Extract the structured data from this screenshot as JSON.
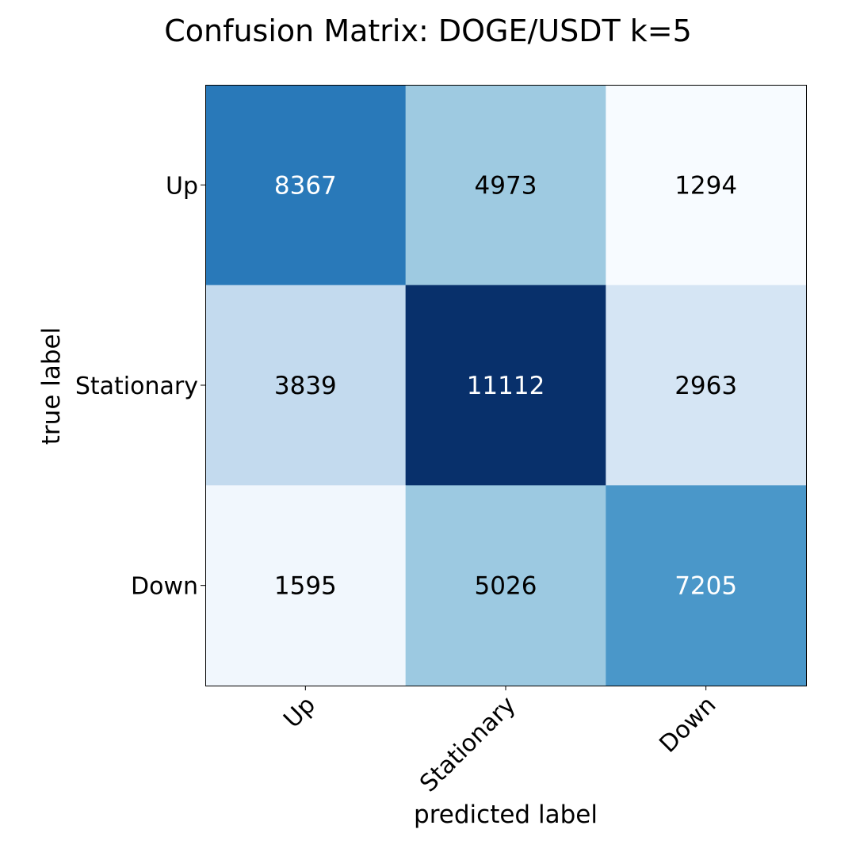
{
  "chart_data": {
    "type": "heatmap",
    "title": "Confusion Matrix: DOGE/USDT k=5",
    "xlabel": "predicted label",
    "ylabel": "true label",
    "x_categories": [
      "Up",
      "Stationary",
      "Down"
    ],
    "y_categories": [
      "Up",
      "Stationary",
      "Down"
    ],
    "values": [
      [
        8367,
        4973,
        1294
      ],
      [
        3839,
        11112,
        2963
      ],
      [
        1595,
        5026,
        7205
      ]
    ],
    "colormap": "Blues",
    "grid": false,
    "colors": {
      "cell_dark_text": "#ffffff",
      "cell_light_text": "#000000",
      "axis_frame": "#000000",
      "background": "#ffffff"
    }
  }
}
